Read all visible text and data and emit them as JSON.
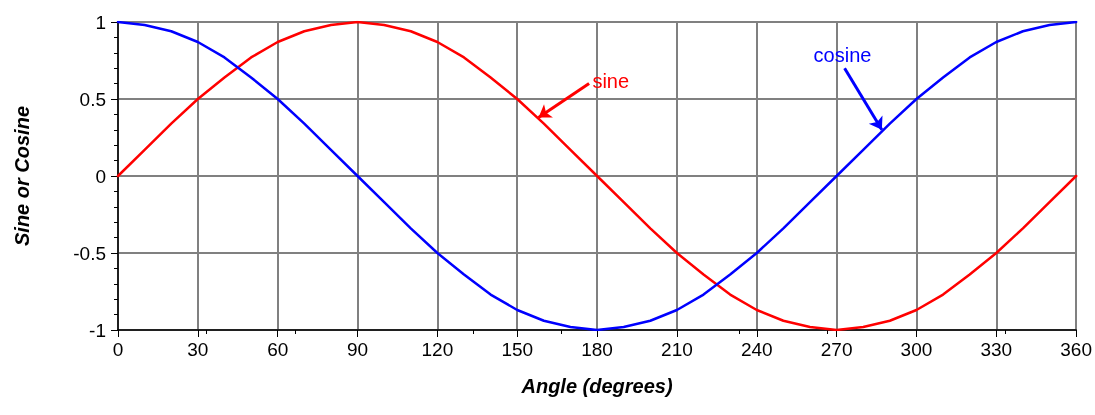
{
  "chart_data": {
    "type": "line",
    "xlabel": "Angle (degrees)",
    "ylabel": "Sine or Cosine",
    "x": [
      0,
      10,
      20,
      30,
      40,
      50,
      60,
      70,
      80,
      90,
      100,
      110,
      120,
      130,
      140,
      150,
      160,
      170,
      180,
      190,
      200,
      210,
      220,
      230,
      240,
      250,
      260,
      270,
      280,
      290,
      300,
      310,
      320,
      330,
      340,
      350,
      360
    ],
    "series": [
      {
        "color": "#ff0000",
        "values": [
          0,
          0.17,
          0.34,
          0.5,
          0.64,
          0.77,
          0.87,
          0.94,
          0.98,
          1,
          0.98,
          0.94,
          0.87,
          0.77,
          0.64,
          0.5,
          0.34,
          0.17,
          0,
          -0.17,
          -0.34,
          -0.5,
          -0.64,
          -0.77,
          -0.87,
          -0.94,
          -0.98,
          -1,
          -0.98,
          -0.94,
          -0.87,
          -0.77,
          -0.64,
          -0.5,
          -0.34,
          -0.17,
          0
        ]
      },
      {
        "color": "#0000ff",
        "values": [
          1,
          0.98,
          0.94,
          0.87,
          0.77,
          0.64,
          0.5,
          0.34,
          0.17,
          0,
          -0.17,
          -0.34,
          -0.5,
          -0.64,
          -0.77,
          -0.87,
          -0.94,
          -0.98,
          -1,
          -0.98,
          -0.94,
          -0.87,
          -0.77,
          -0.64,
          -0.5,
          -0.34,
          -0.17,
          0,
          0.17,
          0.34,
          0.5,
          0.64,
          0.77,
          0.87,
          0.94,
          0.98,
          1
        ]
      }
    ],
    "xlim": [
      0,
      360
    ],
    "xticks": [
      0,
      30,
      60,
      90,
      120,
      150,
      180,
      210,
      240,
      270,
      300,
      330,
      360
    ],
    "ylim": [
      -1,
      1
    ],
    "yticks": [
      -1,
      -0.5,
      0,
      0.5,
      1
    ],
    "annotations": [
      {
        "text": "sine",
        "x": 158,
        "y": 0.38
      },
      {
        "text": "cosine",
        "x": 287,
        "y": 0.3
      }
    ],
    "grid": true,
    "marker": "none",
    "line_style": "solid"
  }
}
